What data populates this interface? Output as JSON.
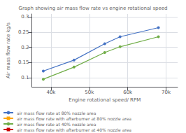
{
  "chart_data": {
    "type": "line",
    "title": "Graph showing air mass flow rate vs engine rotational speed",
    "x_label": "Engine rotational speed/ RPM",
    "y_label": "Air mass flow rate kg/s",
    "xlim": [
      35000,
      73000
    ],
    "xticks": [
      {
        "value": 40000,
        "label": "40k"
      },
      {
        "value": 50000,
        "label": "50k"
      },
      {
        "value": 60000,
        "label": "60k"
      },
      {
        "value": 70000,
        "label": "70k"
      }
    ],
    "ylim": [
      0.07,
      0.31
    ],
    "yticks": [
      0.1,
      0.15,
      0.2,
      0.25,
      0.3
    ],
    "grid": true,
    "legend": "bottom",
    "series": [
      {
        "name": "air mass flow rate at 80% nozzle area",
        "color": "#4472C4",
        "marker": "circle",
        "x": [
          38000,
          46000,
          54000,
          58000,
          68000
        ],
        "values": [
          0.122,
          0.158,
          0.212,
          0.235,
          0.265
        ]
      },
      {
        "name": "air mass flow rate with afterburner at 80% nozzle area",
        "color": "#FFA500",
        "marker": "square",
        "x": [],
        "values": []
      },
      {
        "name": "air mass flow rate at 40% nozzle area",
        "color": "#70AD47",
        "marker": "circle",
        "x": [
          38000,
          46000,
          54000,
          58000,
          68000
        ],
        "values": [
          0.095,
          0.135,
          0.183,
          0.202,
          0.235
        ]
      },
      {
        "name": "air mass flow rate with afterburner at 40% nozzle area",
        "color": "#CC0000",
        "marker": "square",
        "x": [],
        "values": []
      }
    ]
  }
}
